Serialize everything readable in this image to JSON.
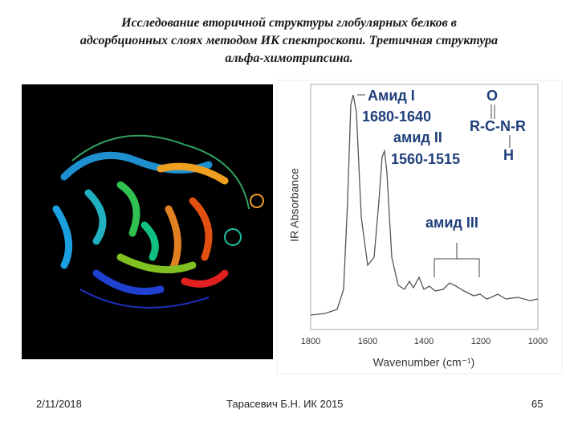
{
  "slide": {
    "title_lines": [
      "Исследование вторичной структуры глобулярных белков в",
      "адсорбционных слоях методом ИК спектроскопи. Третичная структура",
      "альфа-химотрипсина."
    ],
    "spectrum": {
      "y_label": "IR Absorbance",
      "x_label": "Wavenumber (cm⁻¹)",
      "x_ticks": [
        "1800",
        "1600",
        "1400",
        "1200",
        "1000"
      ],
      "annotations": {
        "amide1": "Амид I",
        "amide1_range": "1680-1640",
        "amide2": "амид II",
        "amide2_range": "1560-1515",
        "amide3": "амид III",
        "formula_top": "O",
        "formula_main": "R-C-N-R",
        "formula_bottom": "H"
      }
    },
    "footer": {
      "date": "2/11/2018",
      "author": "Тарасевич Б.Н.  ИК 2015",
      "page": "65"
    }
  }
}
